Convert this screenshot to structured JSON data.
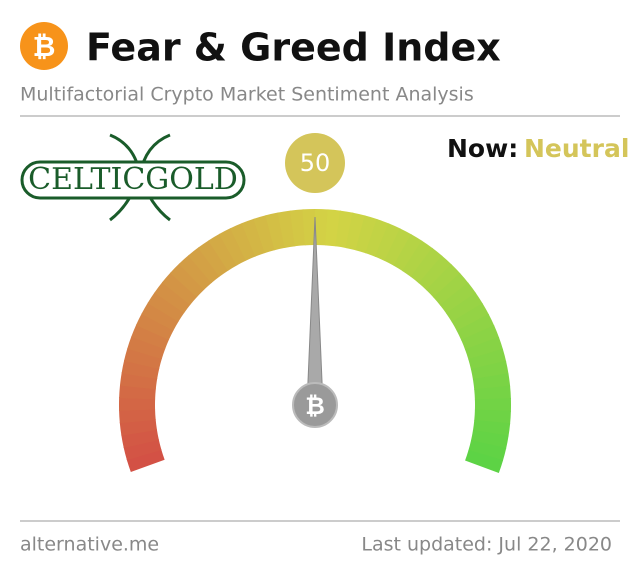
{
  "chart_data": {
    "type": "gauge",
    "title": "Fear & Greed Index",
    "subtitle": "Multifactorial Crypto Market Sentiment Analysis",
    "logo": "CELTICGOLD",
    "status_label": "Now:",
    "status": "Neutral",
    "status_color": "#d4c55a",
    "value": 50,
    "ylim": [
      0,
      100
    ],
    "source": "alternative.me",
    "updated": "Last updated: Jul 22, 2020"
  }
}
